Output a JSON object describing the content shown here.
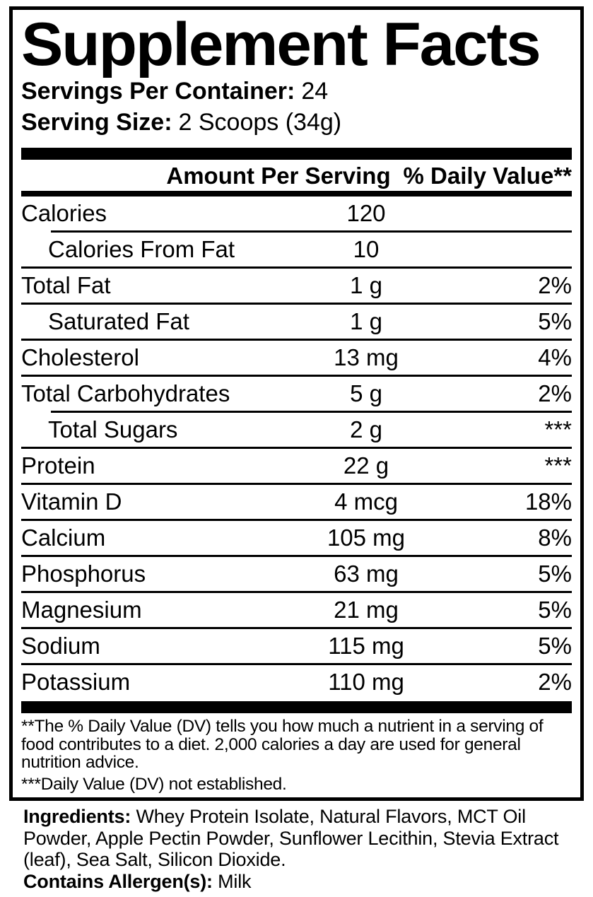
{
  "panel": {
    "title": "Supplement Facts",
    "servings_per_container_label": "Servings Per Container:",
    "servings_per_container_value": "24",
    "serving_size_label": "Serving Size:",
    "serving_size_value": "2 Scoops (34g)"
  },
  "table": {
    "amount_header": "Amount Per Serving",
    "dv_header": "% Daily Value**",
    "rows": [
      {
        "name": "Calories",
        "amount": "120",
        "dv": "",
        "indent": false,
        "divider": "indent"
      },
      {
        "name": "Calories From Fat",
        "amount": "10",
        "dv": "",
        "indent": true,
        "divider": "full"
      },
      {
        "name": "Total Fat",
        "amount": "1 g",
        "dv": "2%",
        "indent": false,
        "divider": "full"
      },
      {
        "name": "Saturated Fat",
        "amount": "1 g",
        "dv": "5%",
        "indent": true,
        "divider": "full"
      },
      {
        "name": "Cholesterol",
        "amount": "13 mg",
        "dv": "4%",
        "indent": false,
        "divider": "full"
      },
      {
        "name": "Total Carbohydrates",
        "amount": "5 g",
        "dv": "2%",
        "indent": false,
        "divider": "indent"
      },
      {
        "name": "Total Sugars",
        "amount": "2 g",
        "dv": "***",
        "indent": true,
        "divider": "full"
      },
      {
        "name": "Protein",
        "amount": "22 g",
        "dv": "***",
        "indent": false,
        "divider": "full"
      },
      {
        "name": "Vitamin D",
        "amount": "4 mcg",
        "dv": "18%",
        "indent": false,
        "divider": "full"
      },
      {
        "name": "Calcium",
        "amount": "105 mg",
        "dv": "8%",
        "indent": false,
        "divider": "full"
      },
      {
        "name": "Phosphorus",
        "amount": "63 mg",
        "dv": "5%",
        "indent": false,
        "divider": "full"
      },
      {
        "name": "Magnesium",
        "amount": "21 mg",
        "dv": "5%",
        "indent": false,
        "divider": "full"
      },
      {
        "name": "Sodium",
        "amount": "115 mg",
        "dv": "5%",
        "indent": false,
        "divider": "full"
      },
      {
        "name": "Potassium",
        "amount": "110 mg",
        "dv": "2%",
        "indent": false,
        "divider": "none"
      }
    ]
  },
  "footnotes": {
    "daily_value_note": "**The % Daily Value (DV) tells you how much a nutrient in a serving of food contributes to a diet. 2,000 calories a day are used for general nutrition advice.",
    "not_established_note": "***Daily Value (DV) not established."
  },
  "ingredients": {
    "label": "Ingredients:",
    "text": "Whey Protein Isolate, Natural Flavors, MCT Oil Powder, Apple Pectin Powder, Sunflower Lecithin, Stevia Extract (leaf), Sea Salt, Silicon Dioxide."
  },
  "allergens": {
    "label": "Contains Allergen(s):",
    "value": "Milk"
  },
  "colors": {
    "text": "#000000",
    "background": "#ffffff"
  }
}
